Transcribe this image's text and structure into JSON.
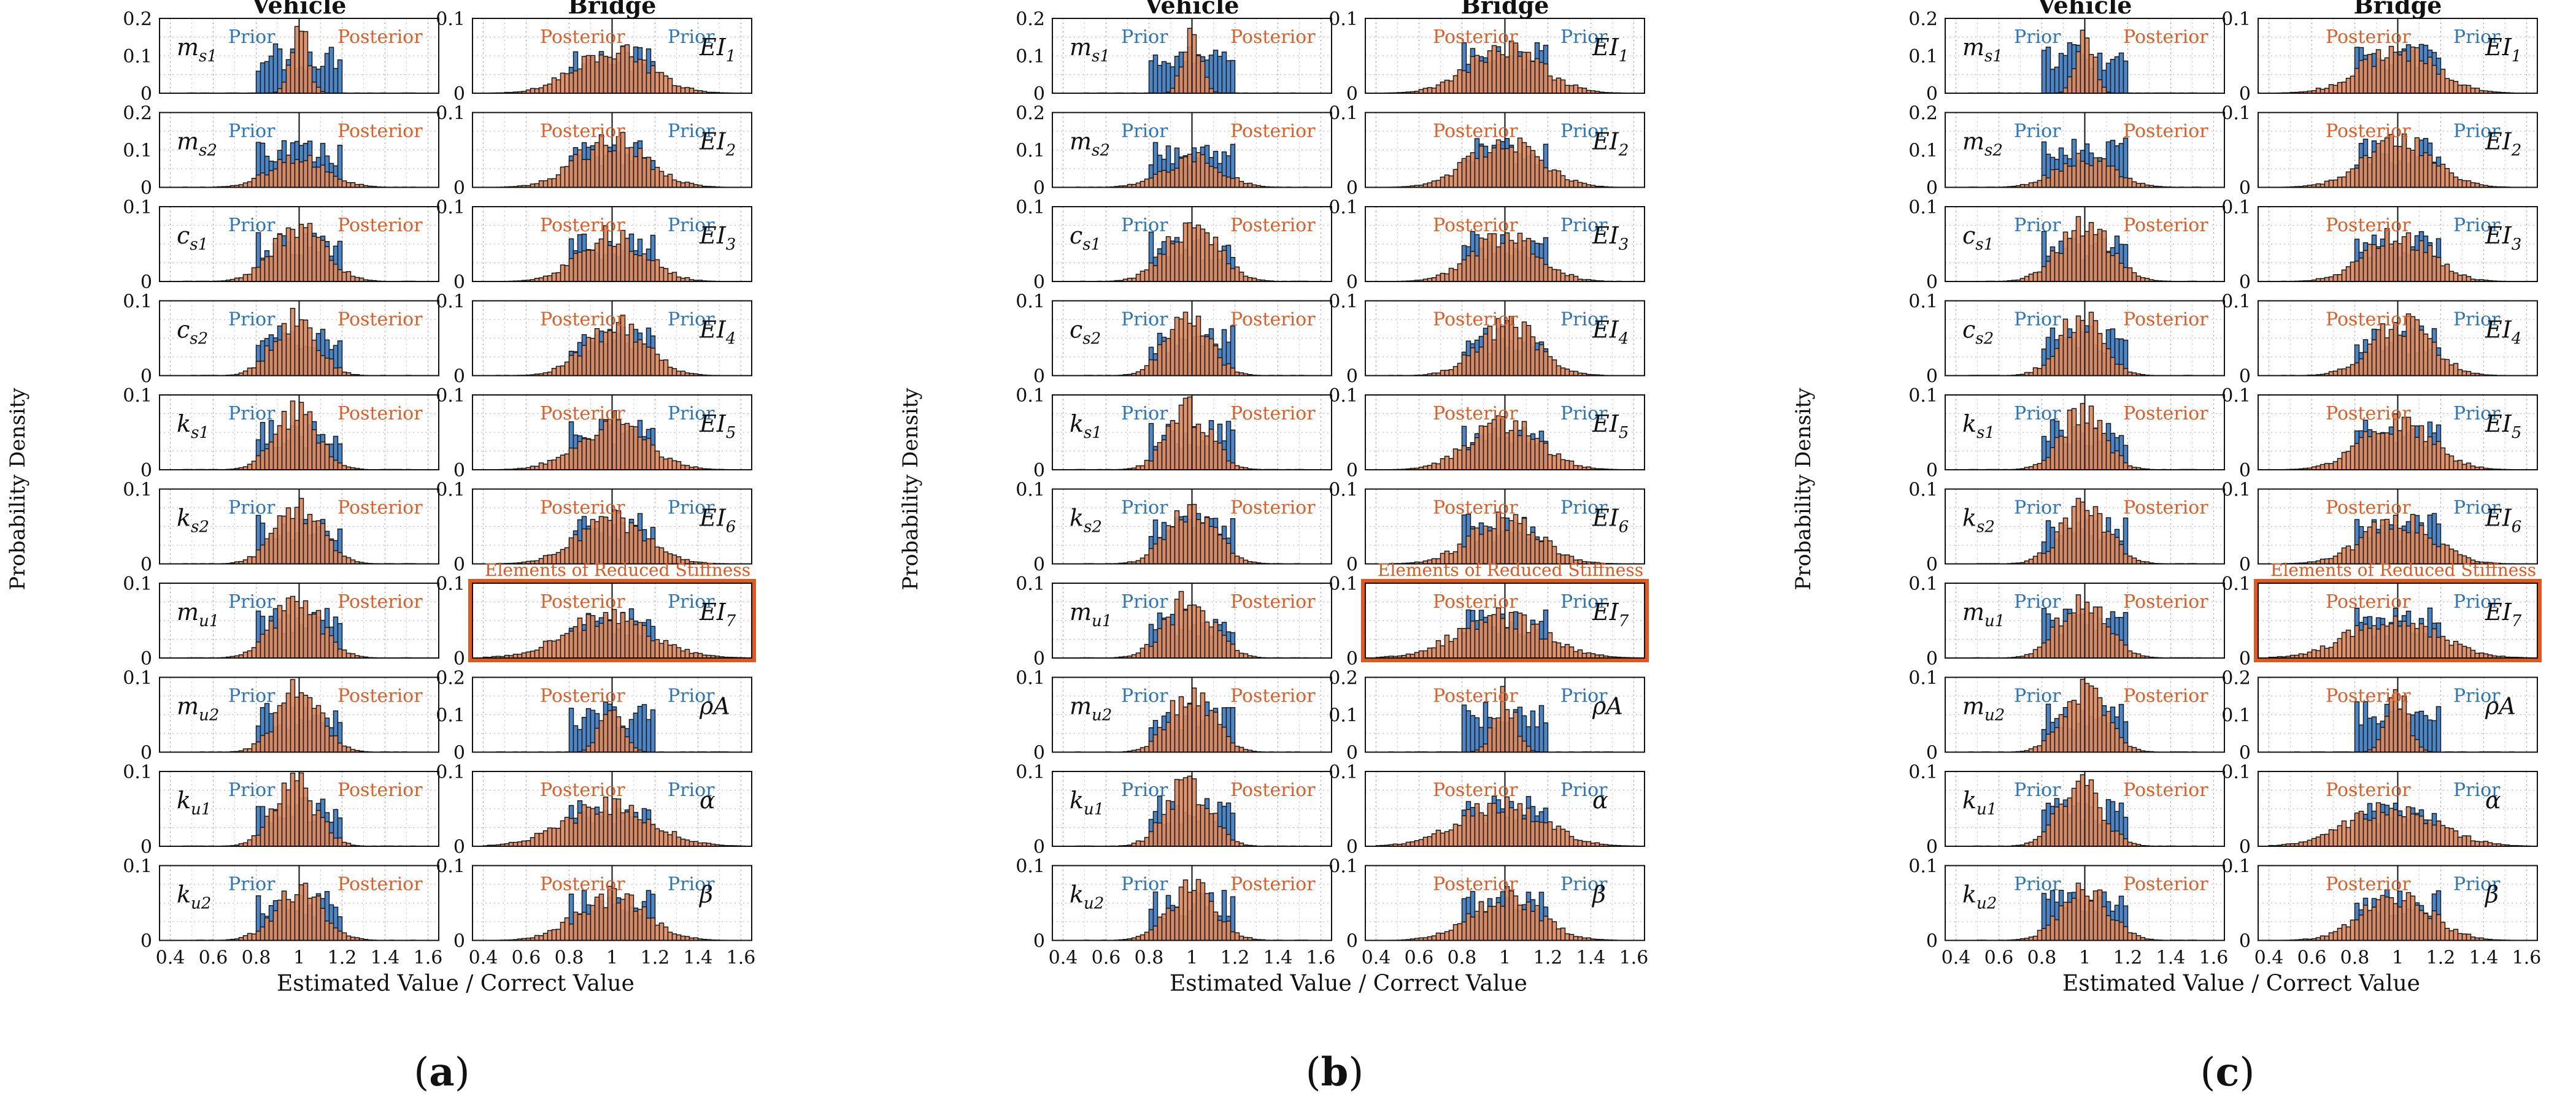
{
  "chart_data": {
    "type": "bar",
    "figure_panels": [
      {
        "label": "(a)",
        "bold_letter": "a",
        "variant": 0
      },
      {
        "label": "(b)",
        "bold_letter": "b",
        "variant": 1
      },
      {
        "label": "(c)",
        "bold_letter": "c",
        "variant": 2
      }
    ],
    "column_titles": {
      "vehicle": "Vehicle",
      "bridge": "Bridge"
    },
    "ylabel": "Probability Density",
    "xlabel": "Estimated Value / Correct Value",
    "xlim": [
      0.35,
      1.65
    ],
    "x_ticks": [
      "0.4",
      "0.6",
      "0.8",
      "1",
      "1.2",
      "1.4",
      "1.6"
    ],
    "legend": {
      "prior": "Prior",
      "posterior": "Posterior"
    },
    "highlight_label": "Elements of Reduced Stiffness",
    "highlight_parameter": "EI7",
    "colors": {
      "prior": "#4a86c8",
      "posterior": "#e08a5c",
      "prior_text": "#2e75b6",
      "posterior_text": "#d9602a",
      "highlight": "#e2581e",
      "bar_edge": "#1a1a1a"
    },
    "vehicle_parameters": [
      {
        "id": "ms1",
        "base": "m",
        "sub": "s1",
        "ylim": [
          0,
          0.2
        ],
        "yticks": [
          "0.2",
          "0.1",
          "0"
        ],
        "prior_range": [
          0.8,
          1.2
        ],
        "posterior_center": 1.0,
        "posterior_width": 0.04,
        "posterior_peak": 0.18
      },
      {
        "id": "ms2",
        "base": "m",
        "sub": "s2",
        "ylim": [
          0,
          0.2
        ],
        "yticks": [
          "0.2",
          "0.1",
          "0"
        ],
        "prior_range": [
          0.8,
          1.2
        ],
        "posterior_center": 1.0,
        "posterior_width": 0.13,
        "posterior_peak": 0.08
      },
      {
        "id": "cs1",
        "base": "c",
        "sub": "s1",
        "ylim": [
          0,
          0.1
        ],
        "yticks": [
          "0.1",
          "0"
        ],
        "prior_range": [
          0.8,
          1.2
        ],
        "posterior_center": 1.0,
        "posterior_width": 0.12,
        "posterior_peak": 0.075
      },
      {
        "id": "cs2",
        "base": "c",
        "sub": "s2",
        "ylim": [
          0,
          0.1
        ],
        "yticks": [
          "0.1",
          "0"
        ],
        "prior_range": [
          0.8,
          1.2
        ],
        "posterior_center": 0.98,
        "posterior_width": 0.1,
        "posterior_peak": 0.08
      },
      {
        "id": "ks1",
        "base": "k",
        "sub": "s1",
        "ylim": [
          0,
          0.1
        ],
        "yticks": [
          "0.1",
          "0"
        ],
        "prior_range": [
          0.8,
          1.2
        ],
        "posterior_center": 0.99,
        "posterior_width": 0.1,
        "posterior_peak": 0.08
      },
      {
        "id": "ks2",
        "base": "k",
        "sub": "s2",
        "ylim": [
          0,
          0.1
        ],
        "yticks": [
          "0.1",
          "0"
        ],
        "prior_range": [
          0.8,
          1.2
        ],
        "posterior_center": 1.0,
        "posterior_width": 0.11,
        "posterior_peak": 0.075
      },
      {
        "id": "mu1",
        "base": "m",
        "sub": "u1",
        "ylim": [
          0,
          0.1
        ],
        "yticks": [
          "0.1",
          "0"
        ],
        "prior_range": [
          0.8,
          1.2
        ],
        "posterior_center": 0.99,
        "posterior_width": 0.11,
        "posterior_peak": 0.08
      },
      {
        "id": "mu2",
        "base": "m",
        "sub": "u2",
        "ylim": [
          0,
          0.1
        ],
        "yticks": [
          "0.1",
          "0"
        ],
        "prior_range": [
          0.8,
          1.2
        ],
        "posterior_center": 1.0,
        "posterior_width": 0.1,
        "posterior_peak": 0.085
      },
      {
        "id": "ku1",
        "base": "k",
        "sub": "u1",
        "ylim": [
          0,
          0.1
        ],
        "yticks": [
          "0.1",
          "0"
        ],
        "prior_range": [
          0.8,
          1.2
        ],
        "posterior_center": 0.98,
        "posterior_width": 0.1,
        "posterior_peak": 0.085
      },
      {
        "id": "ku2",
        "base": "k",
        "sub": "u2",
        "ylim": [
          0,
          0.1
        ],
        "yticks": [
          "0.1",
          "0"
        ],
        "prior_range": [
          0.8,
          1.2
        ],
        "posterior_center": 1.0,
        "posterior_width": 0.11,
        "posterior_peak": 0.07
      }
    ],
    "bridge_parameters": [
      {
        "id": "EI1",
        "base": "EI",
        "sub": "1",
        "ylim": [
          0,
          0.1
        ],
        "yticks": [
          "0.1",
          "0"
        ],
        "prior_range": [
          0.8,
          1.2
        ],
        "posterior_center": 1.0,
        "posterior_width": 0.17,
        "posterior_peak": 0.06
      },
      {
        "id": "EI2",
        "base": "EI",
        "sub": "2",
        "ylim": [
          0,
          0.1
        ],
        "yticks": [
          "0.1",
          "0"
        ],
        "prior_range": [
          0.8,
          1.2
        ],
        "posterior_center": 1.0,
        "posterior_width": 0.16,
        "posterior_peak": 0.065
      },
      {
        "id": "EI3",
        "base": "EI",
        "sub": "3",
        "ylim": [
          0,
          0.1
        ],
        "yticks": [
          "0.1",
          "0"
        ],
        "prior_range": [
          0.8,
          1.2
        ],
        "posterior_center": 1.0,
        "posterior_width": 0.15,
        "posterior_peak": 0.065
      },
      {
        "id": "EI4",
        "base": "EI",
        "sub": "4",
        "ylim": [
          0,
          0.1
        ],
        "yticks": [
          "0.1",
          "0"
        ],
        "prior_range": [
          0.8,
          1.2
        ],
        "posterior_center": 1.02,
        "posterior_width": 0.14,
        "posterior_peak": 0.07
      },
      {
        "id": "EI5",
        "base": "EI",
        "sub": "5",
        "ylim": [
          0,
          0.1
        ],
        "yticks": [
          "0.1",
          "0"
        ],
        "prior_range": [
          0.8,
          1.2
        ],
        "posterior_center": 1.0,
        "posterior_width": 0.16,
        "posterior_peak": 0.065
      },
      {
        "id": "EI6",
        "base": "EI",
        "sub": "6",
        "ylim": [
          0,
          0.1
        ],
        "yticks": [
          "0.1",
          "0"
        ],
        "prior_range": [
          0.8,
          1.2
        ],
        "posterior_center": 1.0,
        "posterior_width": 0.16,
        "posterior_peak": 0.06
      },
      {
        "id": "EI7",
        "base": "EI",
        "sub": "7",
        "ylim": [
          0,
          0.1
        ],
        "yticks": [
          "0.1",
          "0"
        ],
        "prior_range": [
          0.8,
          1.2
        ],
        "posterior_center": 0.98,
        "posterior_width": 0.2,
        "posterior_peak": 0.055,
        "highlight": true
      },
      {
        "id": "rhoA",
        "base": "ρA",
        "sub": "",
        "ylim": [
          0,
          0.2
        ],
        "yticks": [
          "0.2",
          "0.1",
          "0"
        ],
        "prior_range": [
          0.8,
          1.2
        ],
        "posterior_center": 1.0,
        "posterior_width": 0.05,
        "posterior_peak": 0.15
      },
      {
        "id": "alpha",
        "base": "α",
        "sub": "",
        "ylim": [
          0,
          0.1
        ],
        "yticks": [
          "0.1",
          "0"
        ],
        "prior_range": [
          0.8,
          1.2
        ],
        "posterior_center": 0.98,
        "posterior_width": 0.2,
        "posterior_peak": 0.055
      },
      {
        "id": "beta",
        "base": "β",
        "sub": "",
        "ylim": [
          0,
          0.1
        ],
        "yticks": [
          "0.1",
          "0"
        ],
        "prior_range": [
          0.8,
          1.2
        ],
        "posterior_center": 1.0,
        "posterior_width": 0.16,
        "posterior_peak": 0.06
      }
    ]
  }
}
